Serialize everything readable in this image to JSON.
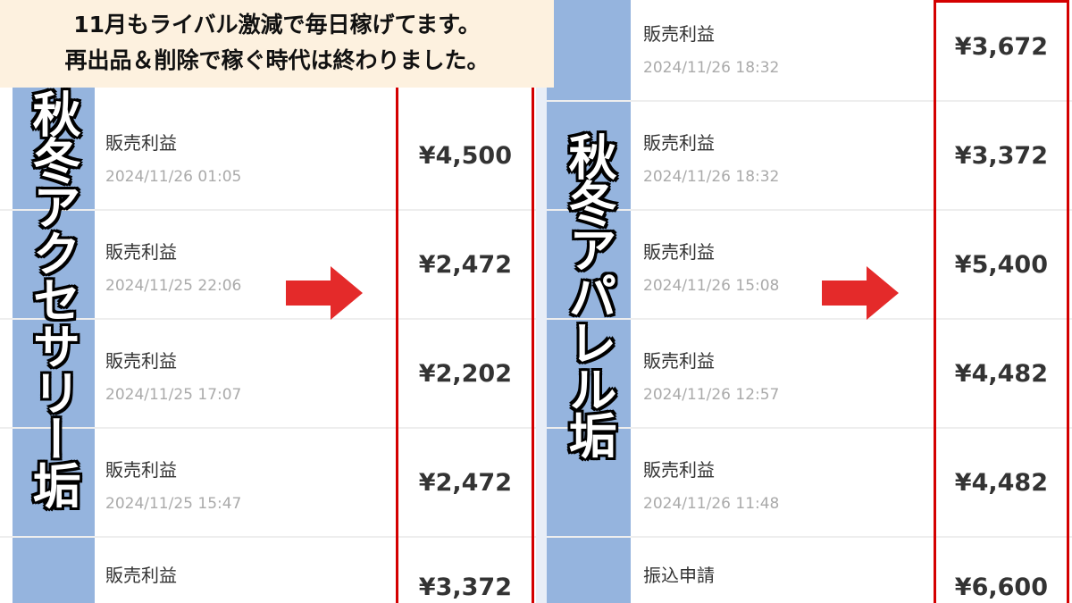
{
  "banner": {
    "line1": "11月もライバル激減で毎日稼げてます。",
    "line2": "再出品＆削除で稼ぐ時代は終わりました。"
  },
  "left_panel": {
    "title": "秋冬アクセサリー垢",
    "rows": [
      {
        "label": "販売利益",
        "date": "2024/11/26 01:05",
        "amount": "¥4,500"
      },
      {
        "label": "販売利益",
        "date": "2024/11/25 22:06",
        "amount": "¥2,472"
      },
      {
        "label": "販売利益",
        "date": "2024/11/25 17:07",
        "amount": "¥2,202"
      },
      {
        "label": "販売利益",
        "date": "2024/11/25 15:47",
        "amount": "¥2,472"
      },
      {
        "label": "販売利益",
        "date": "",
        "amount": "¥3,372"
      }
    ]
  },
  "right_panel": {
    "title": "秋冬アパレル垢",
    "rows": [
      {
        "label": "販売利益",
        "date": "2024/11/26 18:32",
        "amount": "¥3,672"
      },
      {
        "label": "販売利益",
        "date": "2024/11/26 18:32",
        "amount": "¥3,372"
      },
      {
        "label": "販売利益",
        "date": "2024/11/26 15:08",
        "amount": "¥5,400"
      },
      {
        "label": "販売利益",
        "date": "2024/11/26 12:57",
        "amount": "¥4,482"
      },
      {
        "label": "販売利益",
        "date": "2024/11/26 11:48",
        "amount": "¥4,482"
      },
      {
        "label": "振込申請",
        "date": "",
        "amount": "¥6,600"
      }
    ]
  },
  "colors": {
    "highlight": "#d40000",
    "arrow": "#e42a2a",
    "banner": "#fdf1df",
    "strip": "#95b4de"
  }
}
